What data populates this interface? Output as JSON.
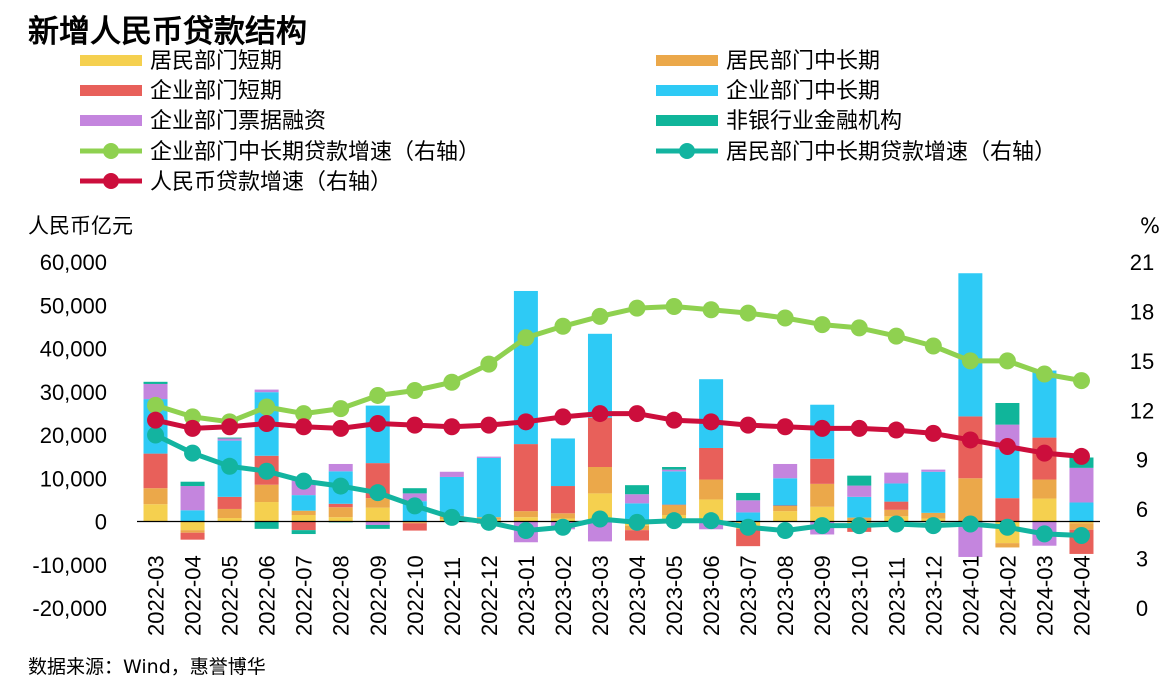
{
  "chart_data": {
    "type": "bar",
    "title": "新增人民币贷款结构",
    "source": "数据来源：Wind，惠誉博华",
    "ylabel_left": "人民币亿元",
    "ylabel_right": "%",
    "ylim_left": [
      -20000,
      60000
    ],
    "ylim_right": [
      0,
      21
    ],
    "y_ticks_left": [
      "-20,000",
      "-10,000",
      "0",
      "10,000",
      "20,000",
      "30,000",
      "40,000",
      "50,000",
      "60,000"
    ],
    "y_ticks_right": [
      "0",
      "3",
      "6",
      "9",
      "12",
      "15",
      "18",
      "21"
    ],
    "categories": [
      "2022-03",
      "2022-04",
      "2022-05",
      "2022-06",
      "2022-07",
      "2022-08",
      "2022-09",
      "2022-10",
      "2022-11",
      "2022-12",
      "2023-01",
      "2023-02",
      "2023-03",
      "2023-04",
      "2023-05",
      "2023-06",
      "2023-07",
      "2023-08",
      "2023-09",
      "2023-10",
      "2023-11",
      "2023-12",
      "2024-01",
      "2024-02",
      "2024-03",
      "2024-04"
    ],
    "bar_series": [
      {
        "name": "居民部门短期",
        "color": "#F5D04F",
        "values": [
          4000,
          -2000,
          800,
          4500,
          1500,
          1000,
          3200,
          -200,
          500,
          400,
          1000,
          700,
          6500,
          -1000,
          1500,
          5100,
          -1000,
          2400,
          3400,
          -700,
          1200,
          700,
          -100,
          -5000,
          5300,
          -400
        ]
      },
      {
        "name": "居民部门中长期",
        "color": "#EBA84A",
        "values": [
          3700,
          -600,
          2100,
          4000,
          1000,
          2300,
          2200,
          -200,
          700,
          600,
          1400,
          1200,
          6100,
          -1000,
          2300,
          4600,
          -700,
          1200,
          5300,
          900,
          1500,
          1300,
          10000,
          -1000,
          4400,
          -1500
        ]
      },
      {
        "name": "企业部门短期",
        "color": "#E8605A",
        "values": [
          8000,
          -1600,
          2800,
          6700,
          -2000,
          800,
          8100,
          -1700,
          100,
          -500,
          15500,
          6300,
          11400,
          -2400,
          100,
          7300,
          -4000,
          100,
          5800,
          -1700,
          1900,
          0,
          14300,
          5400,
          9700,
          -5600
        ]
      },
      {
        "name": "企业部门中长期",
        "color": "#2ECAF5",
        "values": [
          12600,
          2600,
          13000,
          14700,
          3600,
          7500,
          13300,
          4700,
          9000,
          13700,
          35400,
          11000,
          19400,
          4200,
          7700,
          15900,
          2100,
          6300,
          12500,
          4800,
          4200,
          9500,
          33100,
          11300,
          15500,
          4400
        ]
      },
      {
        "name": "企业部门票据融资",
        "color": "#C485DE",
        "values": [
          3500,
          5600,
          500,
          600,
          3400,
          1700,
          -800,
          1800,
          1200,
          300,
          -4800,
          -1800,
          -4600,
          2100,
          400,
          -1800,
          2800,
          3300,
          -3000,
          2600,
          2500,
          500,
          -8100,
          5700,
          -5600,
          8000
        ]
      },
      {
        "name": "非银行业金融机构",
        "color": "#10B59A",
        "values": [
          500,
          1000,
          200,
          -1700,
          -900,
          -200,
          -900,
          1200,
          0,
          0,
          0,
          0,
          0,
          2100,
          600,
          0,
          1700,
          0,
          0,
          2300,
          0,
          0,
          0,
          5000,
          0,
          2400
        ]
      }
    ],
    "line_series": [
      {
        "name": "企业部门中长期贷款增速（右轴）",
        "color": "#8FD150",
        "values": [
          12.3,
          11.6,
          11.3,
          12.2,
          11.8,
          12.1,
          12.9,
          13.2,
          13.7,
          14.8,
          16.4,
          17.1,
          17.7,
          18.2,
          18.3,
          18.1,
          17.9,
          17.6,
          17.2,
          17.0,
          16.5,
          15.9,
          15.0,
          15.0,
          14.2,
          13.8
        ]
      },
      {
        "name": "居民部门中长期贷款增速（右轴）",
        "color": "#13B4A0",
        "values": [
          10.5,
          9.4,
          8.6,
          8.3,
          7.7,
          7.4,
          7.0,
          6.2,
          5.5,
          5.2,
          4.7,
          4.9,
          5.4,
          5.2,
          5.3,
          5.3,
          4.9,
          4.7,
          5.0,
          5.0,
          5.1,
          5.0,
          5.1,
          4.9,
          4.5,
          4.4
        ]
      },
      {
        "name": "人民币贷款增速（右轴）",
        "color": "#CC0E3C",
        "values": [
          11.4,
          10.9,
          11.0,
          11.2,
          11.0,
          10.9,
          11.2,
          11.1,
          11.0,
          11.1,
          11.3,
          11.6,
          11.8,
          11.8,
          11.4,
          11.3,
          11.1,
          11.0,
          10.9,
          10.9,
          10.8,
          10.6,
          10.2,
          9.8,
          9.4,
          9.2
        ]
      }
    ]
  }
}
